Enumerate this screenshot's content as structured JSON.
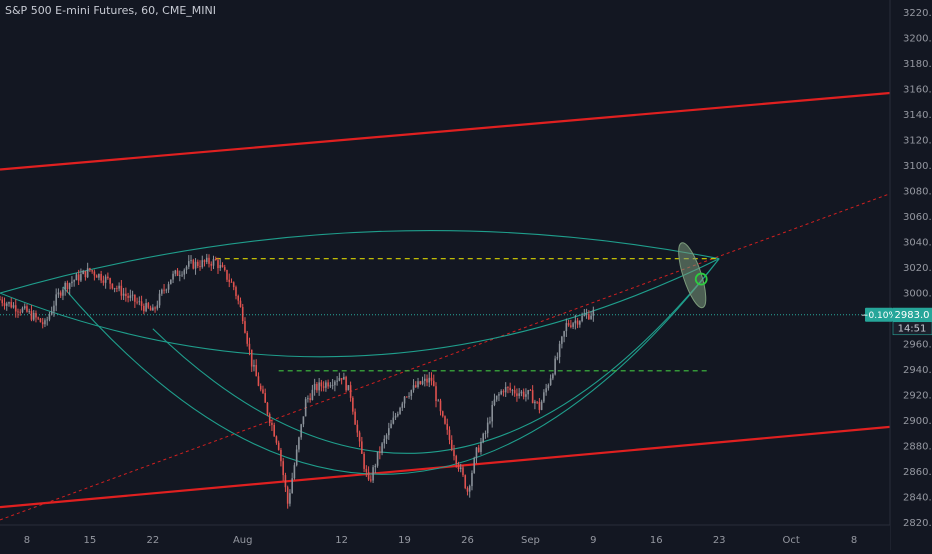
{
  "header": {
    "title": "S&P 500 E-mini Futures, 60, CME_MINI"
  },
  "colors": {
    "background": "#131722",
    "up_candle": "#8a9199",
    "down_candle": "#e0524f",
    "channel_line": "#e02020",
    "arc_line": "#1f9e8c",
    "dashed_yellow": "#d8d400",
    "dashed_green": "#40c040",
    "dotted_red": "#d02020",
    "dotted_teal": "#28a79a",
    "price_badge": "#26a69a",
    "oval_fill": "#7c9b7c",
    "circle": "#2ecc40",
    "axis_text": "#9598a1"
  },
  "chart_data": {
    "type": "candlestick",
    "title": "S&P 500 E-mini Futures, 60, CME_MINI",
    "x_axis": {
      "tick_labels": [
        "8",
        "15",
        "22",
        "Aug",
        "12",
        "19",
        "26",
        "Sep",
        "9",
        "16",
        "23",
        "Oct",
        "8"
      ],
      "range": [
        "2019-07-05",
        "2019-10-12"
      ]
    },
    "y_axis": {
      "tick_labels": [
        "3220.0",
        "3200.0",
        "3180.0",
        "3160.0",
        "3140.0",
        "3120.0",
        "3100.0",
        "3080.0",
        "3060.0",
        "3040.0",
        "3020.0",
        "3000.0",
        "2960.0",
        "2940.0",
        "2920.0",
        "2900.0",
        "2880.0",
        "2860.0",
        "2840.0",
        "2820.0"
      ],
      "range": [
        2818,
        3230
      ],
      "position": "right"
    },
    "price_series": {
      "name": "",
      "points": [
        [
          "2019-07-05",
          2995
        ],
        [
          "2019-07-08",
          2985
        ],
        [
          "2019-07-10",
          2975
        ],
        [
          "2019-07-11",
          2992
        ],
        [
          "2019-07-12",
          3005
        ],
        [
          "2019-07-15",
          3018
        ],
        [
          "2019-07-17",
          3010
        ],
        [
          "2019-07-19",
          2998
        ],
        [
          "2019-07-22",
          2985
        ],
        [
          "2019-07-23",
          3000
        ],
        [
          "2019-07-24",
          3012
        ],
        [
          "2019-07-26",
          3022
        ],
        [
          "2019-07-29",
          3025
        ],
        [
          "2019-07-30",
          3015
        ],
        [
          "2019-07-31",
          3005
        ],
        [
          "2019-08-01",
          2982
        ],
        [
          "2019-08-02",
          2945
        ],
        [
          "2019-08-05",
          2880
        ],
        [
          "2019-08-06",
          2835
        ],
        [
          "2019-08-07",
          2875
        ],
        [
          "2019-08-08",
          2915
        ],
        [
          "2019-08-09",
          2925
        ],
        [
          "2019-08-12",
          2935
        ],
        [
          "2019-08-13",
          2920
        ],
        [
          "2019-08-14",
          2880
        ],
        [
          "2019-08-15",
          2850
        ],
        [
          "2019-08-16",
          2872
        ],
        [
          "2019-08-19",
          2920
        ],
        [
          "2019-08-20",
          2925
        ],
        [
          "2019-08-21",
          2930
        ],
        [
          "2019-08-22",
          2932
        ],
        [
          "2019-08-23",
          2905
        ],
        [
          "2019-08-26",
          2845
        ],
        [
          "2019-08-27",
          2875
        ],
        [
          "2019-08-28",
          2890
        ],
        [
          "2019-08-29",
          2915
        ],
        [
          "2019-08-30",
          2925
        ],
        [
          "2019-09-02",
          2920
        ],
        [
          "2019-09-03",
          2910
        ],
        [
          "2019-09-04",
          2930
        ],
        [
          "2019-09-05",
          2950
        ],
        [
          "2019-09-06",
          2975
        ],
        [
          "2019-09-09",
          2985
        ]
      ]
    },
    "current_price": {
      "value": 2983.0,
      "label": "2983.0",
      "change": "−0.10%",
      "countdown": "14:51"
    },
    "channel_lines": [
      {
        "from": [
          "2019-07-05",
          3097
        ],
        "to": [
          "2019-10-12",
          3157
        ]
      },
      {
        "from": [
          "2019-07-05",
          2832
        ],
        "to": [
          "2019-10-12",
          2895
        ]
      }
    ],
    "horizontal_levels": [
      {
        "value": 3027,
        "from": "2019-07-29",
        "to": "2019-09-23",
        "style": "dashed-yellow"
      },
      {
        "value": 2939,
        "from": "2019-08-05",
        "to": "2019-09-22",
        "style": "dashed-green"
      }
    ],
    "trend_line": {
      "from": [
        "2019-07-05",
        2822
      ],
      "to": [
        "2019-10-12",
        3078
      ],
      "style": "dotted-red"
    },
    "arcs": [
      {
        "from": [
          "2019-07-05",
          3000
        ],
        "control": [
          "2019-08-14",
          3082
        ],
        "to": [
          "2019-09-23",
          3027
        ]
      },
      {
        "from": [
          "2019-07-05",
          3000
        ],
        "control": [
          "2019-08-14",
          2888
        ],
        "to": [
          "2019-09-23",
          3027
        ]
      },
      {
        "from": [
          "2019-07-22",
          2972
        ],
        "control": [
          "2019-08-23",
          2752
        ],
        "to": [
          "2019-09-23",
          3027
        ]
      },
      {
        "from": [
          "2019-07-12",
          3005
        ],
        "control": [
          "2019-08-18",
          2700
        ],
        "to": [
          "2019-09-23",
          3027
        ]
      }
    ],
    "target_zone": {
      "center": [
        "2019-09-20",
        3014
      ],
      "circle_at": [
        "2019-09-21",
        3011
      ]
    },
    "grid": false
  }
}
